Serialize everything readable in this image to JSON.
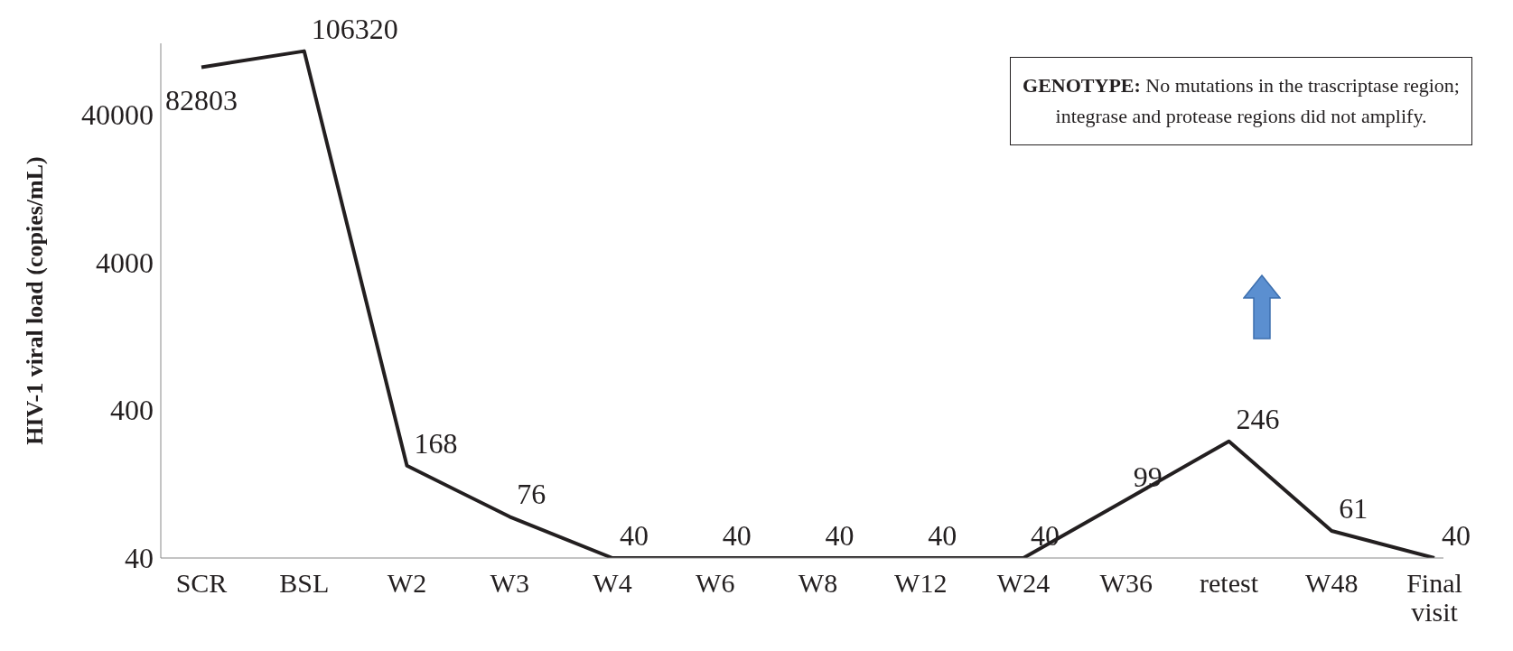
{
  "chart_data": {
    "type": "line",
    "ylabel": "HIV-1 viral load (copies/mL)",
    "categories": [
      "SCR",
      "BSL",
      "W2",
      "W3",
      "W4",
      "W6",
      "W8",
      "W12",
      "W24",
      "W36",
      "retest",
      "W48",
      "Final visit"
    ],
    "series": [
      {
        "color": "#231f20",
        "values": [
          82803,
          106320,
          168,
          76,
          40,
          40,
          40,
          40,
          40,
          99,
          246,
          61,
          40
        ]
      }
    ],
    "log": true,
    "ylim": [
      40,
      120000
    ],
    "yticks": [
      40,
      400,
      4000,
      40000
    ],
    "data_labels": true,
    "grid": false,
    "legend": false,
    "marker": "none",
    "line_style": "solid",
    "annotations": [
      "GENOTYPE: No mutations in the trascriptase region; integrase and protease regions did not amplify."
    ]
  }
}
